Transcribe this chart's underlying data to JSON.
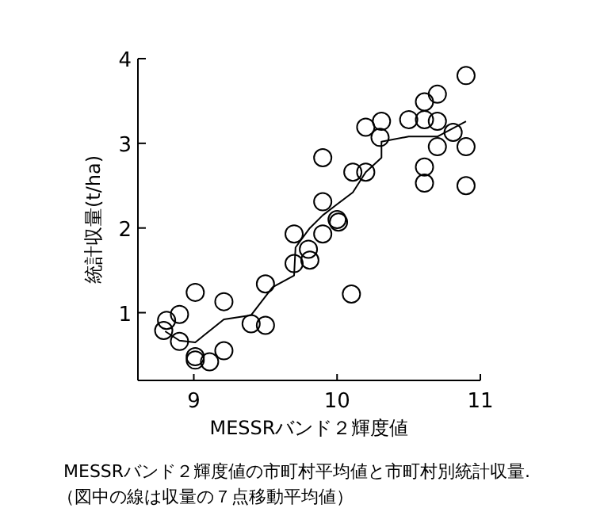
{
  "chart_data": {
    "type": "scatter",
    "xlabel": "MESSRバンド２輝度値",
    "ylabel": "統計収量(t/ha)",
    "annotations": [
      "MESSRバンド２輝度値の市町村平均値と市町村別統計収量.",
      "（図中の線は収量の７点移動平均値）"
    ],
    "xlim": [
      8.61,
      11.0
    ],
    "ylim": [
      0.2,
      4
    ],
    "xticks": [
      9,
      10,
      11
    ],
    "yticks": [
      1,
      2,
      3,
      4
    ],
    "grid": false,
    "series": [
      {
        "color": "#000000",
        "marker": "circle",
        "x": [
          10.9,
          10.7,
          10.61,
          10.5,
          10.61,
          10.7,
          10.31,
          10.2,
          10.3,
          10.7,
          10.81,
          10.9,
          10.61,
          10.61,
          10.9,
          9.9,
          10.11,
          10.2,
          9.9,
          10.0,
          9.7,
          9.9,
          10.01,
          9.8,
          9.7,
          9.81,
          10.1,
          9.5,
          9.01,
          9.21,
          8.9,
          8.81,
          8.79,
          8.9,
          9.4,
          9.5,
          9.21,
          9.01,
          9.11,
          9.01
        ],
        "values": [
          3.8,
          3.58,
          3.49,
          3.28,
          3.28,
          3.26,
          3.26,
          3.19,
          3.07,
          2.96,
          3.13,
          2.96,
          2.72,
          2.53,
          2.5,
          2.83,
          2.66,
          2.66,
          2.31,
          2.1,
          1.93,
          1.93,
          2.07,
          1.75,
          1.58,
          1.62,
          1.22,
          1.34,
          1.24,
          1.13,
          0.98,
          0.91,
          0.79,
          0.66,
          0.87,
          0.85,
          0.55,
          0.48,
          0.42,
          0.44
        ]
      },
      {
        "type": "line",
        "color": "#000000",
        "marker": "none",
        "line_style": "solid",
        "x": [
          8.8,
          8.9,
          9.01,
          9.21,
          9.4,
          9.55,
          9.7,
          9.71,
          9.81,
          9.9,
          10.0,
          10.11,
          10.2,
          10.31,
          10.31,
          10.5,
          10.7,
          10.9
        ],
        "values": [
          0.78,
          0.67,
          0.65,
          0.92,
          0.97,
          1.3,
          1.44,
          1.77,
          2.0,
          2.15,
          2.28,
          2.42,
          2.66,
          2.83,
          3.02,
          3.08,
          3.08,
          3.26
        ]
      }
    ]
  }
}
